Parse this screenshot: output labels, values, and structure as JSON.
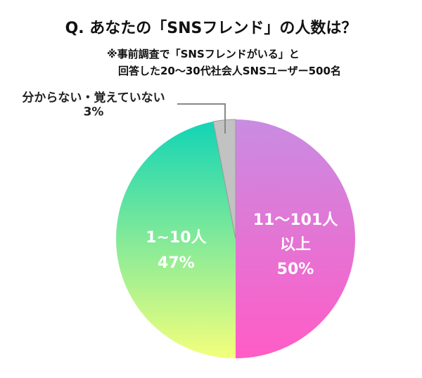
{
  "chart_data": {
    "type": "pie",
    "title": "Q. あなたの「SNSフレンド」の人数は？",
    "subtitle": [
      "※事前調査で「SNSフレンドがいる」と",
      "回答した20～30代社会人SNSユーザー500名"
    ],
    "categories": [
      "11～101人\n以上",
      "1~10人",
      "分からない・覚えていない"
    ],
    "values": [
      50,
      47,
      3
    ],
    "value_labels": [
      "50%",
      "47%",
      "3%"
    ],
    "colors": [
      [
        "#c98ce2",
        "#ff5cc6"
      ],
      [
        "#10d4b6",
        "#f4ff7c"
      ],
      [
        "#c2c2c2",
        "#c2c2c2"
      ]
    ]
  }
}
